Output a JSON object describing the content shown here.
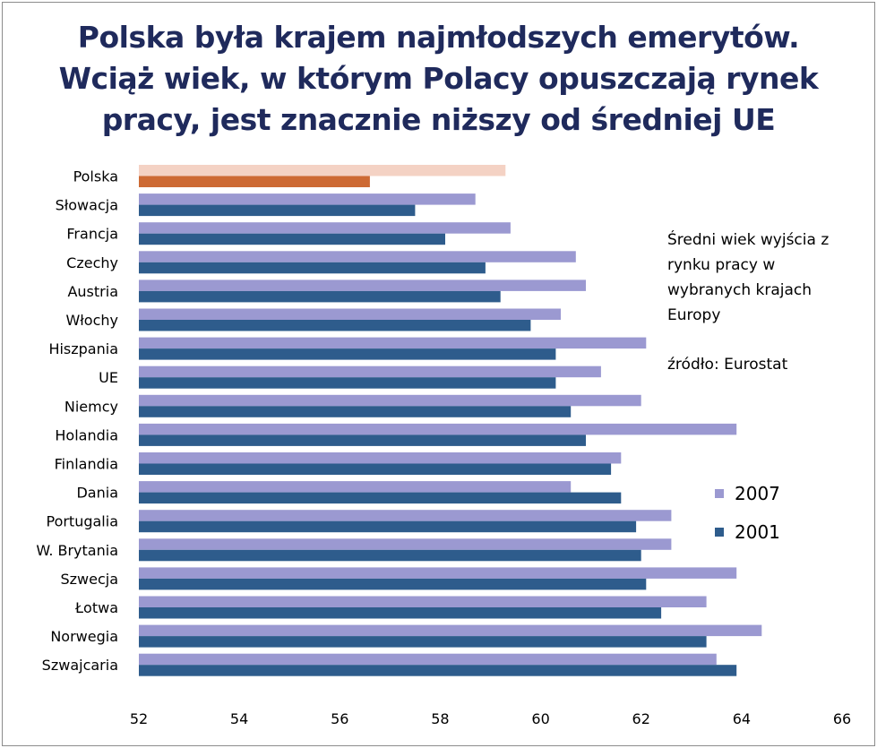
{
  "title_lines": [
    "Polska była krajem najmłodszych emerytów.",
    "Wciąż wiek, w którym Polacy opuszczają rynek",
    "pracy, jest znacznie niższy od średniej UE"
  ],
  "note_lines": [
    "Średni  wiek wyjścia z",
    "rynku pracy w",
    "wybranych krajach",
    "Europy"
  ],
  "source": "źródło: Eurostat",
  "colors": {
    "series_2007": "#9b99d1",
    "series_2001": "#2e5c8c",
    "poland_2007": "#f4d2c4",
    "poland_2001": "#cd6a34",
    "title": "#1f2a5c"
  },
  "chart_data": {
    "type": "bar",
    "orientation": "horizontal",
    "title": "Polska była krajem najmłodszych emerytów. Wciąż wiek, w którym Polacy opuszczają rynek pracy, jest znacznie niższy od średniej UE",
    "categories": [
      "Polska",
      "Słowacja",
      "Francja",
      "Czechy",
      "Austria",
      "Włochy",
      "Hiszpania",
      "UE",
      "Niemcy",
      "Holandia",
      "Finlandia",
      "Dania",
      "Portugalia",
      "W. Brytania",
      "Szwecja",
      "Łotwa",
      "Norwegia",
      "Szwajcaria"
    ],
    "series": [
      {
        "name": "2007",
        "values": [
          59.3,
          58.7,
          59.4,
          60.7,
          60.9,
          60.4,
          62.1,
          61.2,
          62.0,
          63.9,
          61.6,
          60.6,
          62.6,
          62.6,
          63.9,
          63.3,
          64.4,
          63.5
        ]
      },
      {
        "name": "2001",
        "values": [
          56.6,
          57.5,
          58.1,
          58.9,
          59.2,
          59.8,
          60.3,
          60.3,
          60.6,
          60.9,
          61.4,
          61.6,
          61.9,
          62.0,
          62.1,
          62.4,
          63.3,
          63.9
        ]
      }
    ],
    "xlim": [
      52,
      66
    ],
    "xticks": [
      "52",
      "54",
      "56",
      "58",
      "60",
      "62",
      "64",
      "66"
    ],
    "xlabel": "",
    "ylabel": "",
    "legend": {
      "position": "right",
      "entries": [
        "2007",
        "2001"
      ]
    },
    "grid": false
  }
}
